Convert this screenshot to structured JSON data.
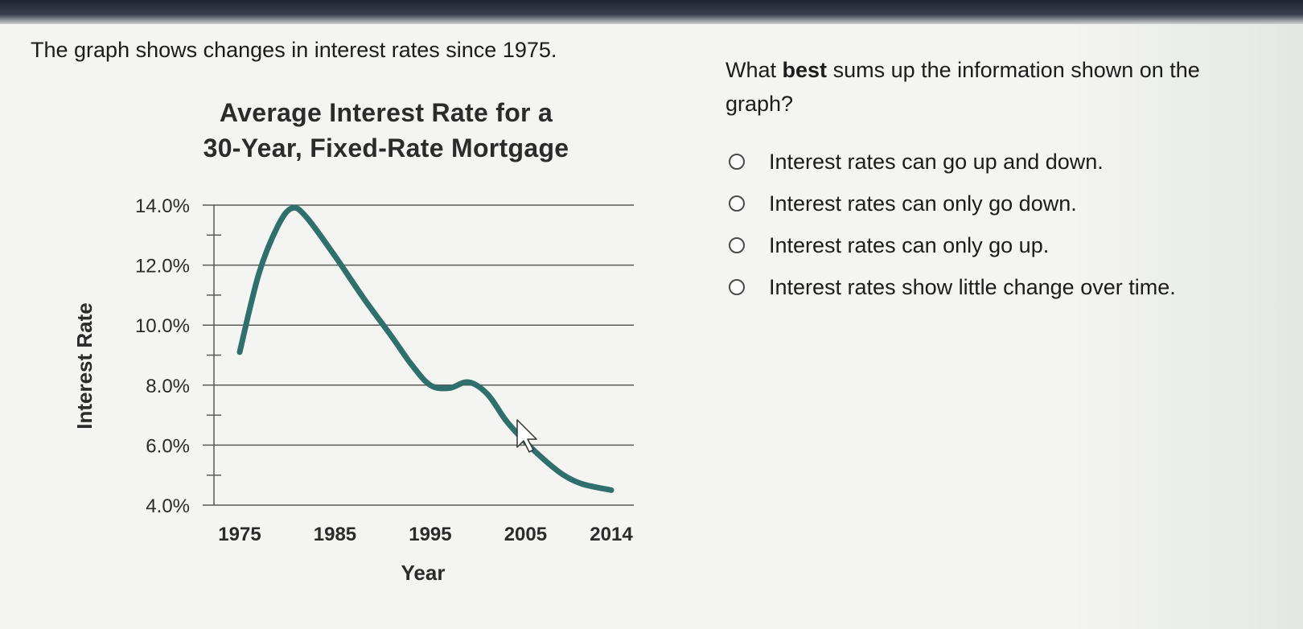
{
  "intro_text": "The graph shows changes in interest rates since 1975.",
  "question": {
    "prefix": "What ",
    "emphasis": "best",
    "suffix": " sums up the information shown on the graph?"
  },
  "options": [
    {
      "label": "Interest rates can go up and down.",
      "selected": false
    },
    {
      "label": "Interest rates can only go down.",
      "selected": false
    },
    {
      "label": "Interest rates can only go up.",
      "selected": false
    },
    {
      "label": "Interest rates show little change over time.",
      "selected": false
    }
  ],
  "colors": {
    "line": "#2f6f6c",
    "grid": "#5a5a5a",
    "text": "#1c1c1c"
  },
  "chart_data": {
    "type": "line",
    "title_lines": [
      "Average Interest Rate for a",
      "30-Year, Fixed-Rate Mortgage"
    ],
    "xlabel": "Year",
    "ylabel": "Interest Rate",
    "x_ticks": [
      "1975",
      "1985",
      "1995",
      "2005",
      "2014"
    ],
    "y_ticks": [
      "14.0%",
      "12.0%",
      "10.0%",
      "8.0%",
      "6.0%",
      "4.0%"
    ],
    "ylim": [
      4,
      14
    ],
    "xlim": [
      1975,
      2014
    ],
    "grid": "horizontal",
    "series": [
      {
        "x": [
          1975,
          1977,
          1979,
          1980.5,
          1982,
          1985,
          1988,
          1991,
          1993,
          1995,
          1997,
          1999,
          2001,
          2003,
          2005,
          2007,
          2009,
          2011,
          2014
        ],
        "y": [
          9.1,
          11.7,
          13.3,
          13.9,
          13.6,
          12.3,
          10.9,
          9.6,
          8.7,
          8.0,
          7.9,
          8.1,
          7.7,
          6.8,
          6.1,
          5.5,
          5.0,
          4.7,
          4.5
        ]
      }
    ]
  }
}
